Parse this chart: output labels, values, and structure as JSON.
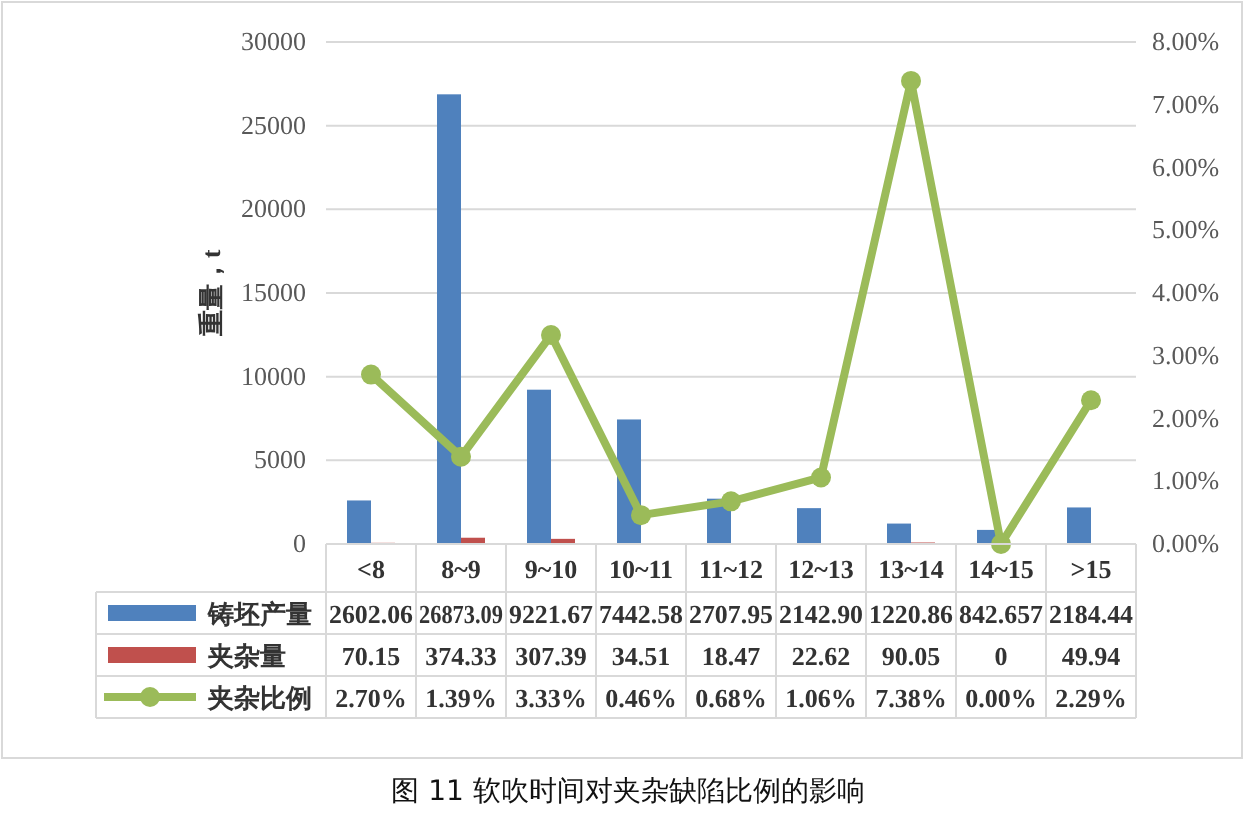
{
  "chart_data": {
    "type": "bar",
    "title": "图 11  软吹时间对夹杂缺陷比例的影响",
    "ylabel": "重量，t",
    "categories": [
      "<8",
      "8~9",
      "9~10",
      "10~11",
      "11~12",
      "12~13",
      "13~14",
      "14~15",
      ">15"
    ],
    "series": [
      {
        "name": "铸坯产量",
        "color": "#4f81bd",
        "values": [
          2602.06,
          26873.09,
          9221.67,
          7442.58,
          2707.95,
          2142.9,
          1220.86,
          842.657,
          2184.44
        ],
        "value_labels": [
          "2602.06",
          "26873.09",
          "9221.67",
          "7442.58",
          "2707.95",
          "2142.90",
          "1220.86",
          "842.657",
          "2184.44"
        ]
      },
      {
        "name": "夹杂量",
        "color": "#c0504d",
        "values": [
          70.15,
          374.33,
          307.39,
          34.51,
          18.47,
          22.62,
          90.05,
          0,
          49.94
        ],
        "value_labels": [
          "70.15",
          "374.33",
          "307.39",
          "34.51",
          "18.47",
          "22.62",
          "90.05",
          "0",
          "49.94"
        ]
      },
      {
        "name": "夹杂比例",
        "type": "line",
        "axis": "y2",
        "color": "#9bbb59",
        "values": [
          2.7,
          1.39,
          3.33,
          0.46,
          0.68,
          1.06,
          7.38,
          0.0,
          2.29
        ],
        "value_labels": [
          "2.70%",
          "1.39%",
          "3.33%",
          "0.46%",
          "0.68%",
          "1.06%",
          "7.38%",
          "0.00%",
          "2.29%"
        ]
      }
    ],
    "ylim": [
      0,
      30000
    ],
    "yticks": [
      0,
      5000,
      10000,
      15000,
      20000,
      25000,
      30000
    ],
    "y2lim": [
      0,
      8
    ],
    "y2ticks": [
      {
        "value": 0,
        "label": "0.00%"
      },
      {
        "value": 1,
        "label": "1.00%"
      },
      {
        "value": 2,
        "label": "2.00%"
      },
      {
        "value": 3,
        "label": "3.00%"
      },
      {
        "value": 4,
        "label": "4.00%"
      },
      {
        "value": 5,
        "label": "5.00%"
      },
      {
        "value": 6,
        "label": "6.00%"
      },
      {
        "value": 7,
        "label": "7.00%"
      },
      {
        "value": 8,
        "label": "8.00%"
      }
    ],
    "grid": "y",
    "legend": "bottom",
    "marker": "circle"
  }
}
